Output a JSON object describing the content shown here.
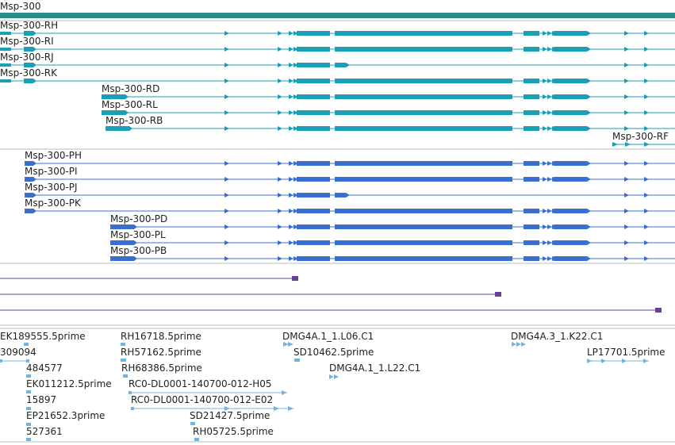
{
  "colors": {
    "gene_bar": "#2e8b8b",
    "transcript_r": "#1a9fb5",
    "transcript_p": "#3a6fd0",
    "purple": "#6a3fa0",
    "est": "#70b4e0",
    "separator": "#bbbbbb"
  },
  "gene": {
    "label": "Msp-300"
  },
  "rna_tracks": [
    {
      "label": "Msp-300-RH"
    },
    {
      "label": "Msp-300-RI"
    },
    {
      "label": "Msp-300-RJ"
    },
    {
      "label": "Msp-300-RK"
    },
    {
      "label": "Msp-300-RD"
    },
    {
      "label": "Msp-300-RL"
    },
    {
      "label": "Msp-300-RB"
    },
    {
      "label": "Msp-300-RF"
    }
  ],
  "protein_tracks": [
    {
      "label": "Msp-300-PH"
    },
    {
      "label": "Msp-300-PI"
    },
    {
      "label": "Msp-300-PJ"
    },
    {
      "label": "Msp-300-PK"
    },
    {
      "label": "Msp-300-PD"
    },
    {
      "label": "Msp-300-PL"
    },
    {
      "label": "Msp-300-PB"
    }
  ],
  "est_labels": [
    {
      "label": "EK189555.5prime"
    },
    {
      "label": "309094"
    },
    {
      "label": "484577"
    },
    {
      "label": "EK011212.5prime"
    },
    {
      "label": "15897"
    },
    {
      "label": "EP21652.3prime"
    },
    {
      "label": "527361"
    },
    {
      "label": "RH16718.5prime"
    },
    {
      "label": "RH57162.5prime"
    },
    {
      "label": "RH68386.5prime"
    },
    {
      "label": "RC0-DL0001-140700-012-H05"
    },
    {
      "label": "RC0-DL0001-140700-012-E02"
    },
    {
      "label": "SD21427.5prime"
    },
    {
      "label": "RH05725.5prime"
    },
    {
      "label": "DMG4A.1_1.L06.C1"
    },
    {
      "label": "SD10462.5prime"
    },
    {
      "label": "DMG4A.1_1.L22.C1"
    },
    {
      "label": "DMG4A.3_1.K22.C1"
    },
    {
      "label": "LP17701.5prime"
    }
  ]
}
